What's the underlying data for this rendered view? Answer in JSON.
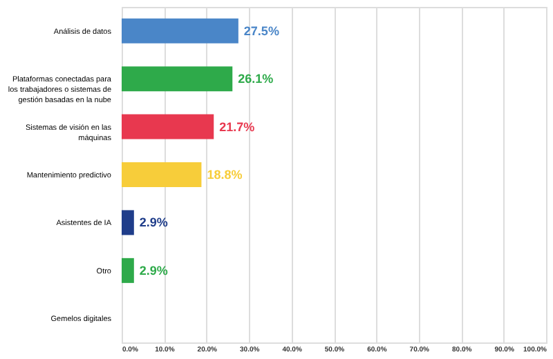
{
  "chart_data": {
    "type": "bar",
    "orientation": "horizontal",
    "categories": [
      "Análisis de datos",
      "Plataformas conectadas para los trabajadores o sistemas de gestión basadas en la nube",
      "Sistemas de visión en las máquinas",
      "Mantenimiento predictivo",
      "Asistentes de IA",
      "Otro",
      "Gemelos digitales"
    ],
    "values": [
      27.5,
      26.1,
      21.7,
      18.8,
      2.9,
      2.9,
      null
    ],
    "colors": [
      "#4a86c8",
      "#2eaa4a",
      "#e8384f",
      "#f7cd3a",
      "#1f3d8a",
      "#2eaa4a",
      "#2eaa4a"
    ],
    "value_labels": [
      "27.5%",
      "26.1%",
      "21.7%",
      "18.8%",
      "2.9%",
      "2.9%",
      null
    ],
    "xlim": [
      0,
      100
    ],
    "xticks": [
      {
        "value": 0,
        "label": "0.0%"
      },
      {
        "value": 10,
        "label": "10.0%"
      },
      {
        "value": 20,
        "label": "20.0%"
      },
      {
        "value": 30,
        "label": "30.0%"
      },
      {
        "value": 40,
        "label": "40.0%"
      },
      {
        "value": 50,
        "label": "50.0%"
      },
      {
        "value": 60,
        "label": "60.0%"
      },
      {
        "value": 70,
        "label": "70.0%"
      },
      {
        "value": 80,
        "label": "80.0%"
      },
      {
        "value": 90,
        "label": "90.0%"
      },
      {
        "value": 100,
        "label": "100.0%"
      }
    ],
    "grid": "x"
  }
}
